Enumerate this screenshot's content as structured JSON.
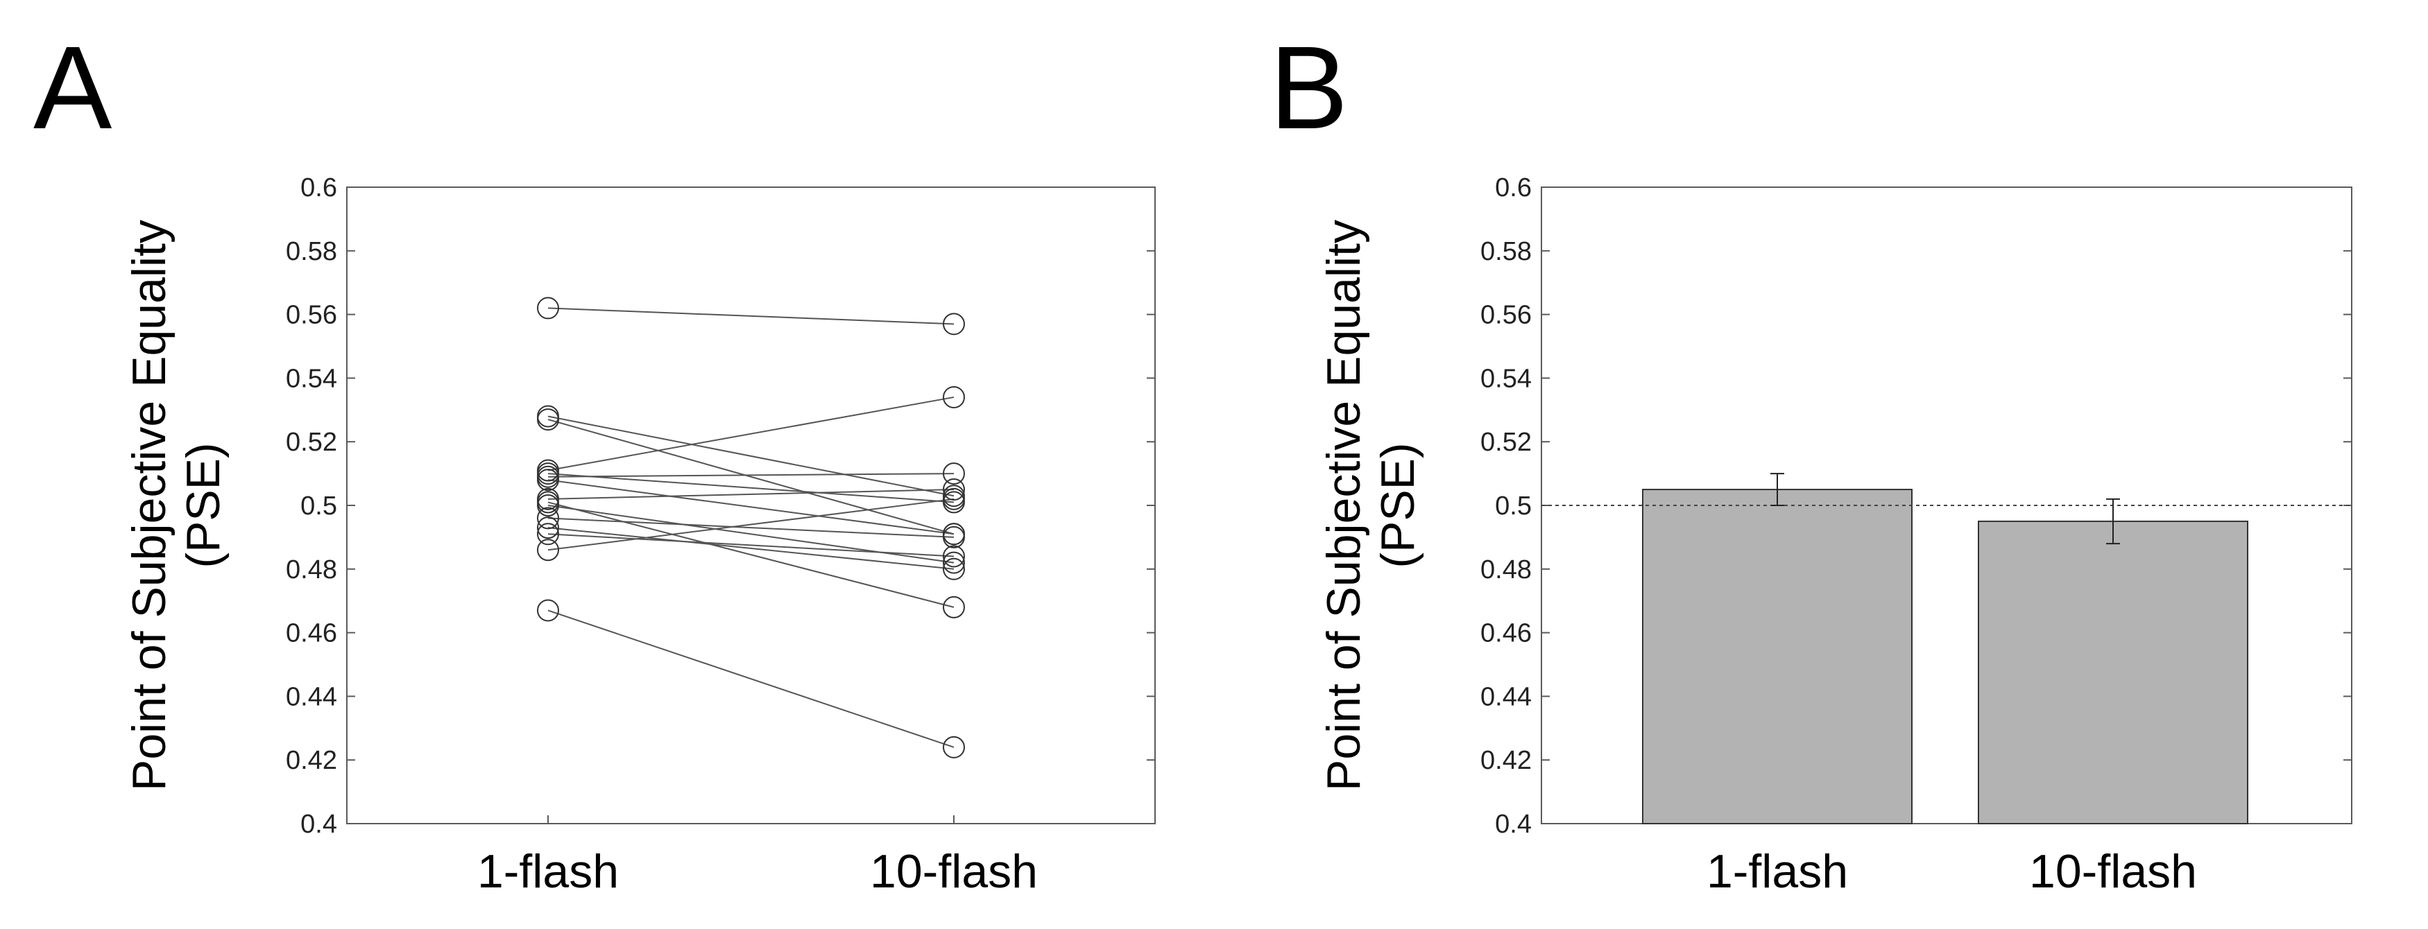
{
  "panel_labels": [
    "A",
    "B"
  ],
  "chart_data": [
    {
      "panel": "A",
      "type": "scatter",
      "connected_pairs": true,
      "marker": "open-circle",
      "categories": [
        "1-flash",
        "10-flash"
      ],
      "ylabel_lines": [
        "Point of Subjective Equality",
        "(PSE)"
      ],
      "ylim": [
        0.4,
        0.6
      ],
      "yticks": [
        0.4,
        0.42,
        0.44,
        0.46,
        0.48,
        0.5,
        0.52,
        0.54,
        0.56,
        0.58,
        0.6
      ],
      "ytick_labels": [
        "0.4",
        "0.42",
        "0.44",
        "0.46",
        "0.48",
        "0.5",
        "0.52",
        "0.54",
        "0.56",
        "0.58",
        "0.6"
      ],
      "grid": false,
      "line_color": "#555555",
      "pairs": [
        [
          0.562,
          0.557
        ],
        [
          0.528,
          0.503
        ],
        [
          0.527,
          0.491
        ],
        [
          0.511,
          0.534
        ],
        [
          0.51,
          0.501
        ],
        [
          0.509,
          0.51
        ],
        [
          0.508,
          0.491
        ],
        [
          0.502,
          0.505
        ],
        [
          0.501,
          0.468
        ],
        [
          0.5,
          0.482
        ],
        [
          0.496,
          0.49
        ],
        [
          0.493,
          0.48
        ],
        [
          0.491,
          0.484
        ],
        [
          0.486,
          0.502
        ],
        [
          0.467,
          0.424
        ]
      ]
    },
    {
      "panel": "B",
      "type": "bar",
      "categories": [
        "1-flash",
        "10-flash"
      ],
      "values": [
        0.505,
        0.495
      ],
      "error_low": [
        0.5,
        0.488
      ],
      "error_high": [
        0.51,
        0.502
      ],
      "reference_line": 0.5,
      "reference_line_style": "dotted",
      "ylabel_lines": [
        "Point of Subjective Equality",
        "(PSE)"
      ],
      "ylim": [
        0.4,
        0.6
      ],
      "yticks": [
        0.4,
        0.42,
        0.44,
        0.46,
        0.48,
        0.5,
        0.52,
        0.54,
        0.56,
        0.58,
        0.6
      ],
      "ytick_labels": [
        "0.4",
        "0.42",
        "0.44",
        "0.46",
        "0.48",
        "0.5",
        "0.52",
        "0.54",
        "0.56",
        "0.58",
        "0.6"
      ],
      "grid": false,
      "bar_color": "#b3b3b3",
      "bar_edge_color": "#333333"
    }
  ]
}
